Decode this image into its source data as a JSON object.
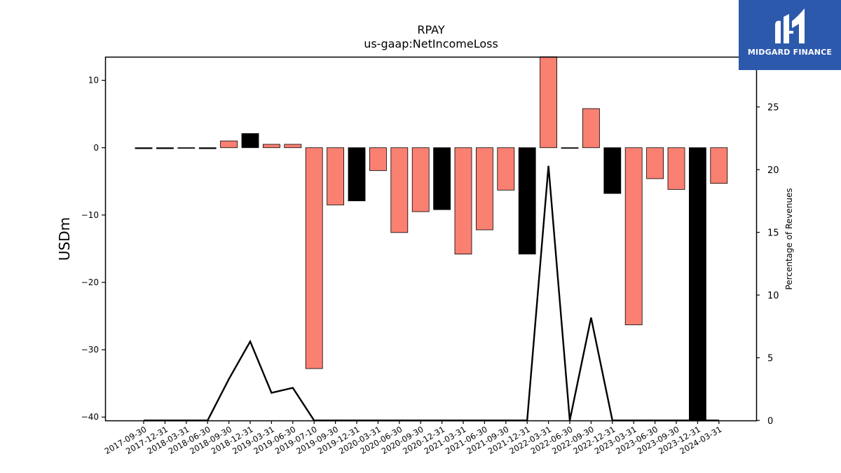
{
  "brand": {
    "name": "MIDGARD FINANCE",
    "color": "#2c59ac"
  },
  "chart_data": {
    "type": "bar",
    "title": "RPAY",
    "subtitle": "us-gaap:NetIncomeLoss",
    "ylabel": "USDm",
    "y2label": "Percentage of Revenues",
    "ylim": [
      -40.5,
      13.5
    ],
    "y2lim": [
      0,
      29
    ],
    "yticks": [
      10,
      0,
      -10,
      -20,
      -30,
      -40
    ],
    "y2ticks": [
      0,
      5,
      10,
      15,
      20,
      25
    ],
    "grid": false,
    "categories": [
      "2017-09-30",
      "2017-12-31",
      "2018-03-31",
      "2018-06-30",
      "2018-09-30",
      "2018-12-31",
      "2019-03-31",
      "2019-06-30",
      "2019-07-10",
      "2019-09-30",
      "2019-12-31",
      "2020-03-31",
      "2020-06-30",
      "2020-09-30",
      "2020-12-31",
      "2021-03-31",
      "2021-06-30",
      "2021-09-30",
      "2021-12-31",
      "2022-03-31",
      "2022-06-30",
      "2022-09-30",
      "2022-12-31",
      "2023-03-31",
      "2023-06-30",
      "2023-09-30",
      "2023-12-31",
      "2024-03-31"
    ],
    "values": [
      -0.15,
      -0.15,
      -0.05,
      -0.15,
      1.0,
      2.1,
      0.5,
      0.5,
      -32.8,
      -8.5,
      -7.9,
      -3.4,
      -12.6,
      -9.5,
      -9.2,
      -15.8,
      -12.2,
      -6.3,
      -15.8,
      13.5,
      -0.05,
      5.8,
      -6.8,
      -26.3,
      -4.6,
      -6.2,
      -40.5,
      -5.3
    ],
    "bar_colors": [
      "#000000",
      "#000000",
      "#000000",
      "#000000",
      "#fa8072",
      "#000000",
      "#fa8072",
      "#fa8072",
      "#fa8072",
      "#fa8072",
      "#000000",
      "#fa8072",
      "#fa8072",
      "#fa8072",
      "#000000",
      "#fa8072",
      "#fa8072",
      "#fa8072",
      "#000000",
      "#fa8072",
      "#000000",
      "#fa8072",
      "#000000",
      "#fa8072",
      "#fa8072",
      "#fa8072",
      "#000000",
      "#fa8072"
    ],
    "percent_of_revenues": [
      0,
      0,
      0,
      0,
      3.3,
      6.3,
      2.2,
      2.6,
      0,
      0,
      0,
      0,
      0,
      0,
      0,
      0,
      0,
      0,
      0,
      20.3,
      0,
      8.2,
      0,
      0,
      0,
      0,
      0,
      0
    ],
    "line_color": "#000000"
  }
}
